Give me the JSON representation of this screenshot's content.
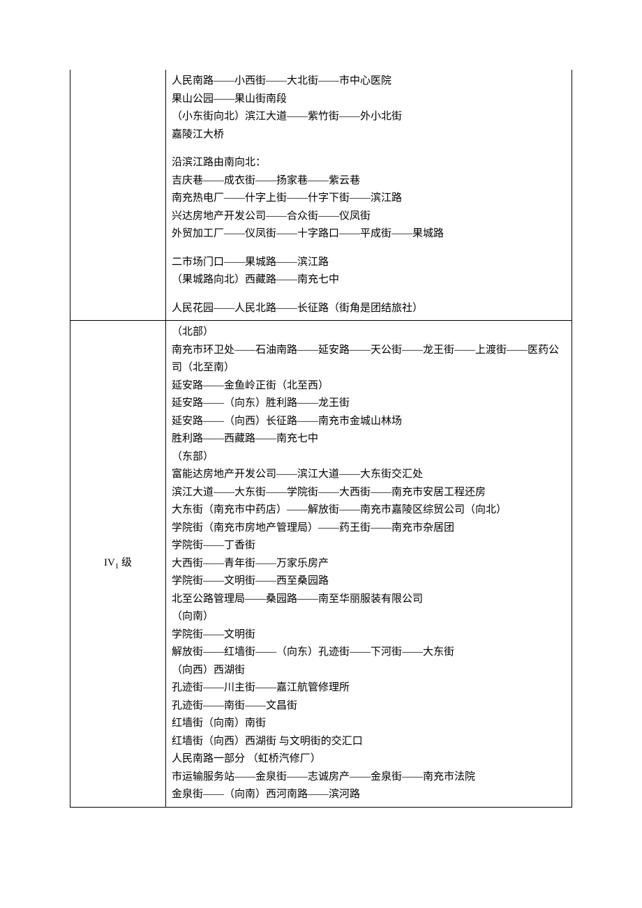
{
  "table": {
    "rows": [
      {
        "level": "",
        "continuation": true,
        "content": [
          "人民南路——小西街——大北街——市中心医院",
          "果山公园——果山街南段",
          "（小东街向北）滨江大道——紫竹街——外小北街",
          "嘉陵江大桥",
          "",
          "沿滨江路由南向北：",
          "吉庆巷——成衣街——扬家巷——紫云巷",
          "南充热电厂——什字上街——什字下街——滨江路",
          "兴达房地产开发公司——合众街——仪凤街",
          "外贸加工厂——仪凤街——十字路口——平成街——果城路",
          "",
          "二市场门口——果城路——滨江路",
          "（果城路向北）西藏路——南充七中",
          "",
          "人民花园——人民北路——长征路（街角是团结旅社）"
        ]
      },
      {
        "level": "IV₁ 级",
        "level_html": "IV<sub>1</sub> 级",
        "continuation": false,
        "content": [
          "（北部）",
          "南充市环卫处——石油南路——延安路——天公街——龙王街——上渡街——医药公司（北至南）",
          "延安路——金鱼岭正街（北至西）",
          "延安路——（向东）胜利路——龙王街",
          "延安路——（向西）长征路——南充市金城山林场",
          "胜利路——西藏路——南充七中",
          "（东部）",
          "富能达房地产开发公司——滨江大道——大东街交汇处",
          "滨江大道——大东街——学院街——大西街——南充市安居工程还房",
          "大东街（南充市中药店）——解放街——南充市嘉陵区综贸公司（向北）",
          "学院街（南充市房地产管理局）——药王街——南充市杂居团",
          "学院街——丁香街",
          "大西街——青年街——万家乐房产",
          "学院街——文明街——西至桑园路",
          "北至公路管理局——桑园路——南至华丽服装有限公司",
          "（向南）",
          "学院街——文明街",
          "解放街——红墙街——（向东）孔迹街——下河街——大东街",
          "（向西）西湖街",
          "孔迹街——川主街——嘉江航管修理所",
          "孔迹街——南街——文昌街",
          "红墙街（向南）南街",
          "红墙街（向西）西湖街  与文明街的交汇口",
          "人民南路一部分  （虹桥汽修厂）",
          "市运输服务站——金泉街——志诚房产——金泉街——南充市法院",
          "金泉街——（向南）西河南路——滨河路"
        ]
      }
    ]
  }
}
